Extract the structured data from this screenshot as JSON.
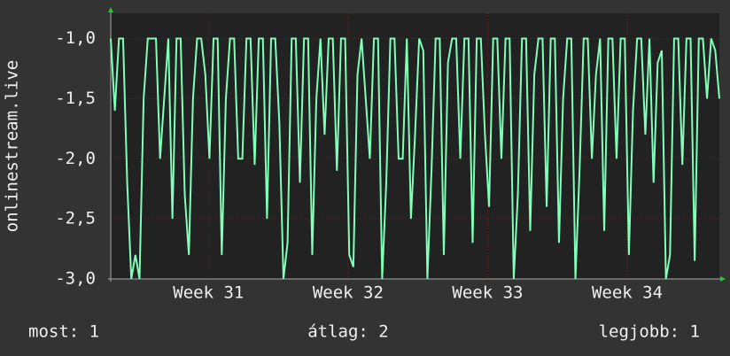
{
  "chart_data": {
    "type": "line",
    "y_label": "onlinestream.live",
    "ylim": [
      -3,
      -0.79
    ],
    "yticks": [
      {
        "value": -3,
        "label": "-3,0"
      },
      {
        "value": -2.5,
        "label": "-2,5"
      },
      {
        "value": -2,
        "label": "-2,0"
      },
      {
        "value": -1.5,
        "label": "-1,5"
      },
      {
        "value": -1,
        "label": "-1,0"
      }
    ],
    "xlim": [
      30.3,
      34.66
    ],
    "xticks": [
      {
        "value": 31,
        "label": "Week 31"
      },
      {
        "value": 32,
        "label": "Week 32"
      },
      {
        "value": 33,
        "label": "Week 33"
      },
      {
        "value": 34,
        "label": "Week 34"
      }
    ],
    "grid": true,
    "color": "#80ffb8",
    "values": [
      -1,
      -1.6,
      -1,
      -1,
      -2.2,
      -3,
      -2.8,
      -3,
      -1.5,
      -1,
      -1,
      -1,
      -2,
      -1.5,
      -1,
      -2.5,
      -1,
      -1,
      -2.3,
      -2.8,
      -1.5,
      -1,
      -1,
      -1.3,
      -2,
      -1,
      -1,
      -2.8,
      -1.5,
      -1,
      -1,
      -2,
      -2,
      -1,
      -1,
      -2.05,
      -1,
      -1,
      -2.5,
      -1,
      -1,
      -1.7,
      -3,
      -2.7,
      -1,
      -1,
      -2.2,
      -1,
      -1,
      -2.8,
      -1.5,
      -1,
      -1.8,
      -1,
      -1,
      -2.1,
      -1,
      -1,
      -2.8,
      -2.9,
      -1.3,
      -1,
      -1.5,
      -2,
      -1,
      -1,
      -3,
      -2.2,
      -1,
      -1,
      -2,
      -2,
      -1,
      -2.5,
      -1.8,
      -1,
      -1.1,
      -3,
      -2.1,
      -1,
      -1,
      -2.8,
      -1.2,
      -1,
      -1,
      -2,
      -1,
      -1,
      -2.7,
      -1,
      -1,
      -1.8,
      -2.4,
      -1,
      -1,
      -2,
      -1,
      -1,
      -3,
      -2.3,
      -1,
      -1,
      -2.6,
      -1.3,
      -1,
      -1,
      -2.4,
      -1,
      -1,
      -2.7,
      -1.5,
      -1,
      -1,
      -3,
      -2.1,
      -1,
      -1,
      -2,
      -1.3,
      -1,
      -2.6,
      -1,
      -1,
      -2,
      -1,
      -1,
      -2.8,
      -1.6,
      -1,
      -1,
      -1.8,
      -1,
      -2.2,
      -1.2,
      -1.1,
      -3,
      -2.8,
      -1,
      -1,
      -2.05,
      -1,
      -1,
      -2.85,
      -1,
      -1,
      -1.5,
      -1,
      -1.1,
      -1.5
    ],
    "stats": [
      "most: 1",
      "átlag: 2",
      "legjobb: 1"
    ]
  }
}
